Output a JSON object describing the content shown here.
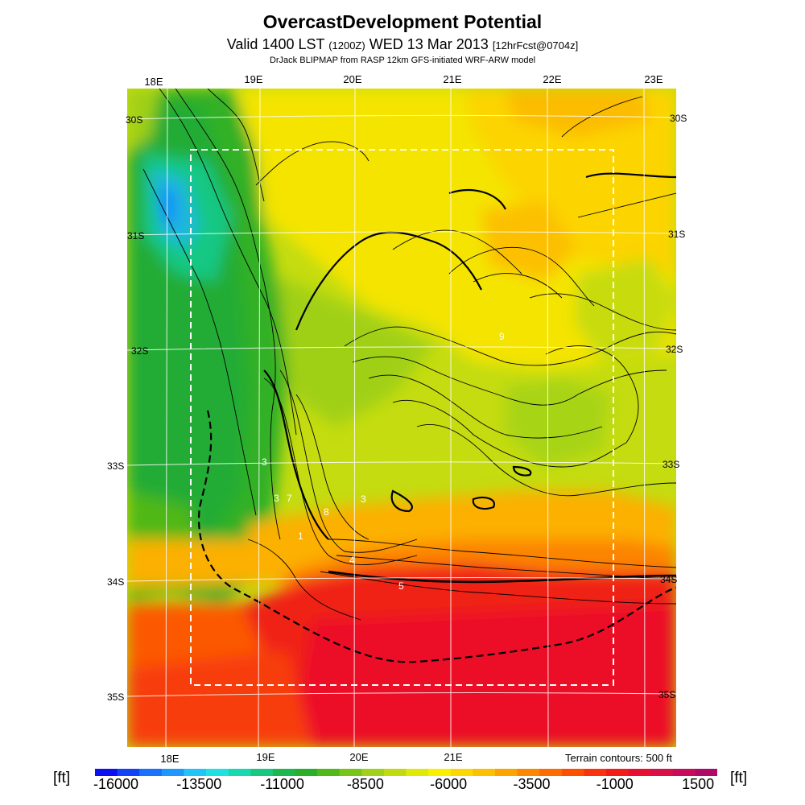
{
  "header": {
    "title": "OvercastDevelopment Potential",
    "valid_prefix": "Valid 1400 LST",
    "valid_utc": "(1200Z)",
    "valid_date": "WED 13 Mar 2013",
    "forecast": "[12hrFcst@0704z]",
    "credit": "DrJack BLIPMAP from RASP 12km GFS-initiated WRF-ARW model"
  },
  "map": {
    "lon_top": [
      "18E",
      "19E",
      "20E",
      "21E",
      "22E",
      "23E"
    ],
    "lon_bottom": [
      "18E",
      "19E",
      "20E",
      "21E"
    ],
    "lat_left": [
      "30S",
      "31S",
      "32S",
      "33S",
      "34S",
      "35S"
    ],
    "lat_right": [
      "30S",
      "31S",
      "32S",
      "33S",
      "34S",
      "35S"
    ],
    "contour_numbers": [
      "3",
      "3",
      "7",
      "1",
      "8",
      "3",
      "4",
      "5",
      "9"
    ]
  },
  "legend": {
    "terrain_note": "Terrain contours: 500 ft",
    "unit_left": "[ft]",
    "unit_right": "[ft]",
    "tick_labels": [
      "-16000",
      "-13500",
      "-11000",
      "-8500",
      "-6000",
      "-3500",
      "-1000",
      "1500"
    ],
    "colors": [
      "#0a10ee",
      "#1042f8",
      "#1870fc",
      "#1c98fc",
      "#20c4f8",
      "#20e0e4",
      "#18d8b0",
      "#18c880",
      "#1cb84c",
      "#28b028",
      "#50b818",
      "#78c418",
      "#a0d018",
      "#c0dc10",
      "#e0e808",
      "#f8f000",
      "#fcd800",
      "#fcc000",
      "#fca400",
      "#fc8800",
      "#fc6c00",
      "#fc5000",
      "#f83410",
      "#f41c18",
      "#e81030",
      "#d81048",
      "#c80c5c",
      "#b00a68"
    ]
  }
}
